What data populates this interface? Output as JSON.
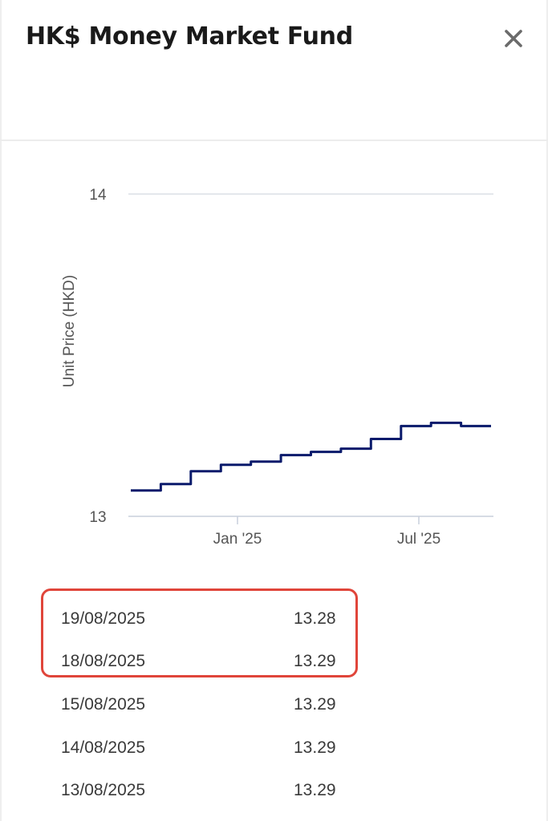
{
  "header": {
    "title": "HK$ Money Market Fund",
    "close_icon": "close-icon"
  },
  "chart_data": {
    "type": "line",
    "ylabel": "Unit Price (HKD)",
    "ylim": [
      13,
      14
    ],
    "yticks": [
      "14",
      "13"
    ],
    "xticks": [
      "Jan '25",
      "Jul '25"
    ],
    "x": [
      "2024-09",
      "2024-10",
      "2024-11",
      "2024-12",
      "2025-01",
      "2025-02",
      "2025-03",
      "2025-04",
      "2025-05",
      "2025-06",
      "2025-07",
      "2025-08"
    ],
    "series": [
      {
        "values": [
          13.08,
          13.1,
          13.14,
          13.16,
          13.17,
          13.19,
          13.2,
          13.21,
          13.24,
          13.28,
          13.29,
          13.28
        ]
      }
    ],
    "line_color": "#0a1a6b",
    "grid": true
  },
  "prices": {
    "rows": [
      {
        "date": "19/08/2025",
        "price": "13.28"
      },
      {
        "date": "18/08/2025",
        "price": "13.29"
      },
      {
        "date": "15/08/2025",
        "price": "13.29"
      },
      {
        "date": "14/08/2025",
        "price": "13.29"
      },
      {
        "date": "13/08/2025",
        "price": "13.29"
      }
    ],
    "highlight_color": "#e0453a"
  }
}
